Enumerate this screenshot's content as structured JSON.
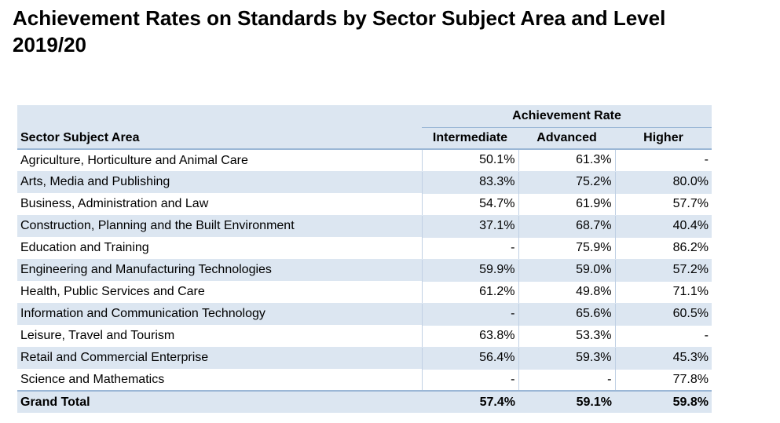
{
  "title_line1": "Achievement Rates on Standards by Sector Subject Area and Level",
  "title_line2": "2019/20",
  "chart_data": {
    "type": "table",
    "group_header": "Achievement Rate",
    "columns": [
      "Sector Subject Area",
      "Intermediate",
      "Advanced",
      "Higher"
    ],
    "rows": [
      [
        "Agriculture, Horticulture and Animal Care",
        "50.1%",
        "61.3%",
        "-"
      ],
      [
        "Arts, Media and Publishing",
        "83.3%",
        "75.2%",
        "80.0%"
      ],
      [
        "Business, Administration and Law",
        "54.7%",
        "61.9%",
        "57.7%"
      ],
      [
        "Construction, Planning and the Built Environment",
        "37.1%",
        "68.7%",
        "40.4%"
      ],
      [
        "Education and Training",
        "-",
        "75.9%",
        "86.2%"
      ],
      [
        "Engineering and Manufacturing Technologies",
        "59.9%",
        "59.0%",
        "57.2%"
      ],
      [
        "Health, Public Services and Care",
        "61.2%",
        "49.8%",
        "71.1%"
      ],
      [
        "Information and Communication Technology",
        "-",
        "65.6%",
        "60.5%"
      ],
      [
        "Leisure, Travel and Tourism",
        "63.8%",
        "53.3%",
        "-"
      ],
      [
        "Retail and Commercial Enterprise",
        "56.4%",
        "59.3%",
        "45.3%"
      ],
      [
        "Science and Mathematics",
        "-",
        "-",
        "77.8%"
      ]
    ],
    "total_row": [
      "Grand Total",
      "57.4%",
      "59.1%",
      "59.8%"
    ]
  }
}
